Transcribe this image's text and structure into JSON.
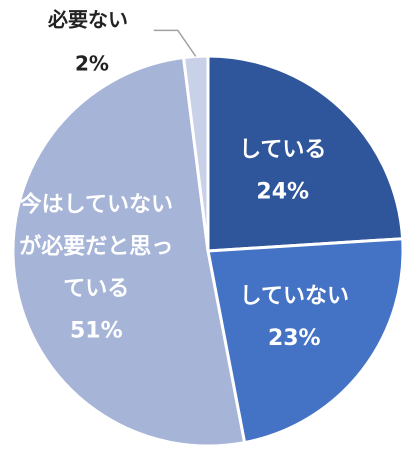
{
  "chart_data": {
    "type": "pie",
    "categories": [
      "している",
      "していない",
      "今はしていないが必要だと思っている",
      "必要ない"
    ],
    "values": [
      24,
      23,
      51,
      2
    ],
    "labels": [
      {
        "lines": [
          "している"
        ],
        "percent": "24%"
      },
      {
        "lines": [
          "していない"
        ],
        "percent": "23%"
      },
      {
        "lines": [
          "今はしていない",
          "が必要だと思っ",
          "ている"
        ],
        "percent": "51%"
      },
      {
        "lines": [
          "必要ない"
        ],
        "percent": "2%"
      }
    ],
    "colors": [
      "#2f569b",
      "#4472c4",
      "#a6b4d8",
      "#c9d1e8"
    ],
    "label_color": "#ffffff",
    "start": "12 o'clock",
    "direction": "clockwise",
    "title": "",
    "legend": "none"
  }
}
